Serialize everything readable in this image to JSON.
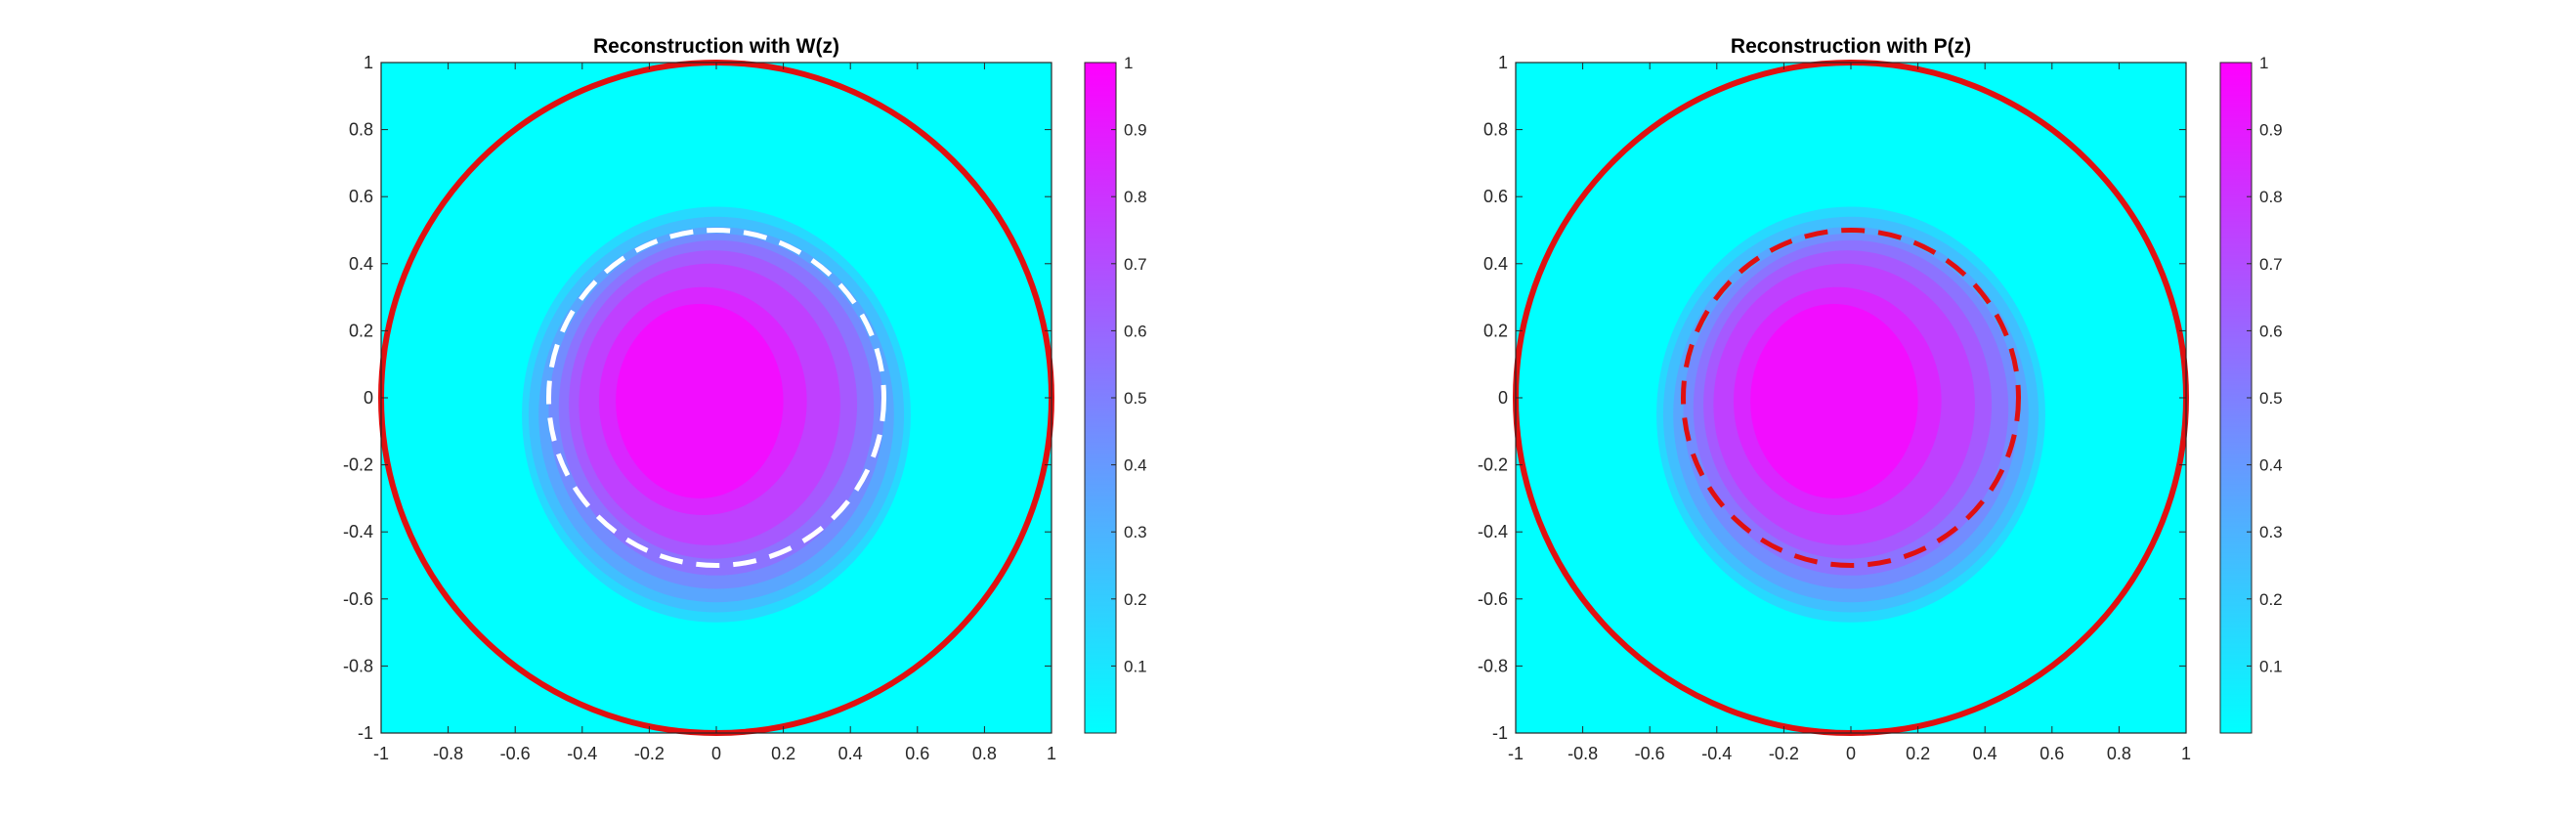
{
  "figure": {
    "colormap": [
      "#00ffff",
      "#ff00ff"
    ],
    "outer_circle_color": "#e01010",
    "colorbar_ticks": [
      "0.1",
      "0.2",
      "0.3",
      "0.4",
      "0.5",
      "0.6",
      "0.7",
      "0.8",
      "0.9",
      "1"
    ]
  },
  "chart_data": [
    {
      "type": "heatmap",
      "title": "Reconstruction with W(z)",
      "xlim": [
        -1,
        1
      ],
      "ylim": [
        -1,
        1
      ],
      "xticks": [
        -1,
        -0.8,
        -0.6,
        -0.4,
        -0.2,
        0,
        0.2,
        0.4,
        0.6,
        0.8,
        1
      ],
      "yticks": [
        -1,
        -0.8,
        -0.6,
        -0.4,
        -0.2,
        0,
        0.2,
        0.4,
        0.6,
        0.8,
        1
      ],
      "xtick_labels": [
        "-1",
        "-0.8",
        "-0.6",
        "-0.4",
        "-0.2",
        "0",
        "0.2",
        "0.4",
        "0.6",
        "0.8",
        "1"
      ],
      "ytick_labels": [
        "-1",
        "-0.8",
        "-0.6",
        "-0.4",
        "-0.2",
        "0",
        "0.2",
        "0.4",
        "0.6",
        "0.8",
        "1"
      ],
      "colorbar_range": [
        0,
        1
      ],
      "contour_levels": [
        {
          "level": 0.1,
          "cx": 0.0,
          "cy": -0.05,
          "rx": 0.58,
          "ry": 0.62
        },
        {
          "level": 0.2,
          "cx": 0.0,
          "cy": -0.05,
          "rx": 0.56,
          "ry": 0.59
        },
        {
          "level": 0.3,
          "cx": 0.0,
          "cy": -0.05,
          "rx": 0.53,
          "ry": 0.56
        },
        {
          "level": 0.4,
          "cx": 0.0,
          "cy": -0.04,
          "rx": 0.5,
          "ry": 0.53
        },
        {
          "level": 0.5,
          "cx": 0.0,
          "cy": -0.03,
          "rx": 0.47,
          "ry": 0.5
        },
        {
          "level": 0.6,
          "cx": -0.01,
          "cy": -0.02,
          "rx": 0.43,
          "ry": 0.46
        },
        {
          "level": 0.7,
          "cx": -0.02,
          "cy": -0.02,
          "rx": 0.39,
          "ry": 0.42
        },
        {
          "level": 0.8,
          "cx": -0.04,
          "cy": -0.01,
          "rx": 0.31,
          "ry": 0.34
        },
        {
          "level": 0.9,
          "cx": -0.05,
          "cy": -0.01,
          "rx": 0.25,
          "ry": 0.29
        }
      ],
      "outer_circle": {
        "cx": 0,
        "cy": 0,
        "r": 1
      },
      "inner_circle": {
        "cx": 0,
        "cy": 0,
        "r": 0.5,
        "color": "#ffffff",
        "dashed": true
      },
      "grid": false
    },
    {
      "type": "heatmap",
      "title": "Reconstruction with P(z)",
      "xlim": [
        -1,
        1
      ],
      "ylim": [
        -1,
        1
      ],
      "xticks": [
        -1,
        -0.8,
        -0.6,
        -0.4,
        -0.2,
        0,
        0.2,
        0.4,
        0.6,
        0.8,
        1
      ],
      "yticks": [
        -1,
        -0.8,
        -0.6,
        -0.4,
        -0.2,
        0,
        0.2,
        0.4,
        0.6,
        0.8,
        1
      ],
      "xtick_labels": [
        "-1",
        "-0.8",
        "-0.6",
        "-0.4",
        "-0.2",
        "0",
        "0.2",
        "0.4",
        "0.6",
        "0.8",
        "1"
      ],
      "ytick_labels": [
        "-1",
        "-0.8",
        "-0.6",
        "-0.4",
        "-0.2",
        "0",
        "0.2",
        "0.4",
        "0.6",
        "0.8",
        "1"
      ],
      "colorbar_range": [
        0,
        1
      ],
      "contour_levels": [
        {
          "level": 0.1,
          "cx": 0.0,
          "cy": -0.05,
          "rx": 0.58,
          "ry": 0.62
        },
        {
          "level": 0.2,
          "cx": 0.0,
          "cy": -0.05,
          "rx": 0.56,
          "ry": 0.59
        },
        {
          "level": 0.3,
          "cx": 0.0,
          "cy": -0.05,
          "rx": 0.53,
          "ry": 0.56
        },
        {
          "level": 0.4,
          "cx": 0.0,
          "cy": -0.04,
          "rx": 0.5,
          "ry": 0.53
        },
        {
          "level": 0.5,
          "cx": 0.0,
          "cy": -0.03,
          "rx": 0.47,
          "ry": 0.5
        },
        {
          "level": 0.6,
          "cx": -0.01,
          "cy": -0.02,
          "rx": 0.43,
          "ry": 0.46
        },
        {
          "level": 0.7,
          "cx": -0.02,
          "cy": -0.02,
          "rx": 0.39,
          "ry": 0.42
        },
        {
          "level": 0.8,
          "cx": -0.04,
          "cy": -0.01,
          "rx": 0.31,
          "ry": 0.34
        },
        {
          "level": 0.9,
          "cx": -0.05,
          "cy": -0.01,
          "rx": 0.25,
          "ry": 0.29
        }
      ],
      "outer_circle": {
        "cx": 0,
        "cy": 0,
        "r": 1
      },
      "inner_circle": {
        "cx": 0,
        "cy": 0,
        "r": 0.5,
        "color": "#e01010",
        "dashed": true
      },
      "grid": false
    }
  ]
}
